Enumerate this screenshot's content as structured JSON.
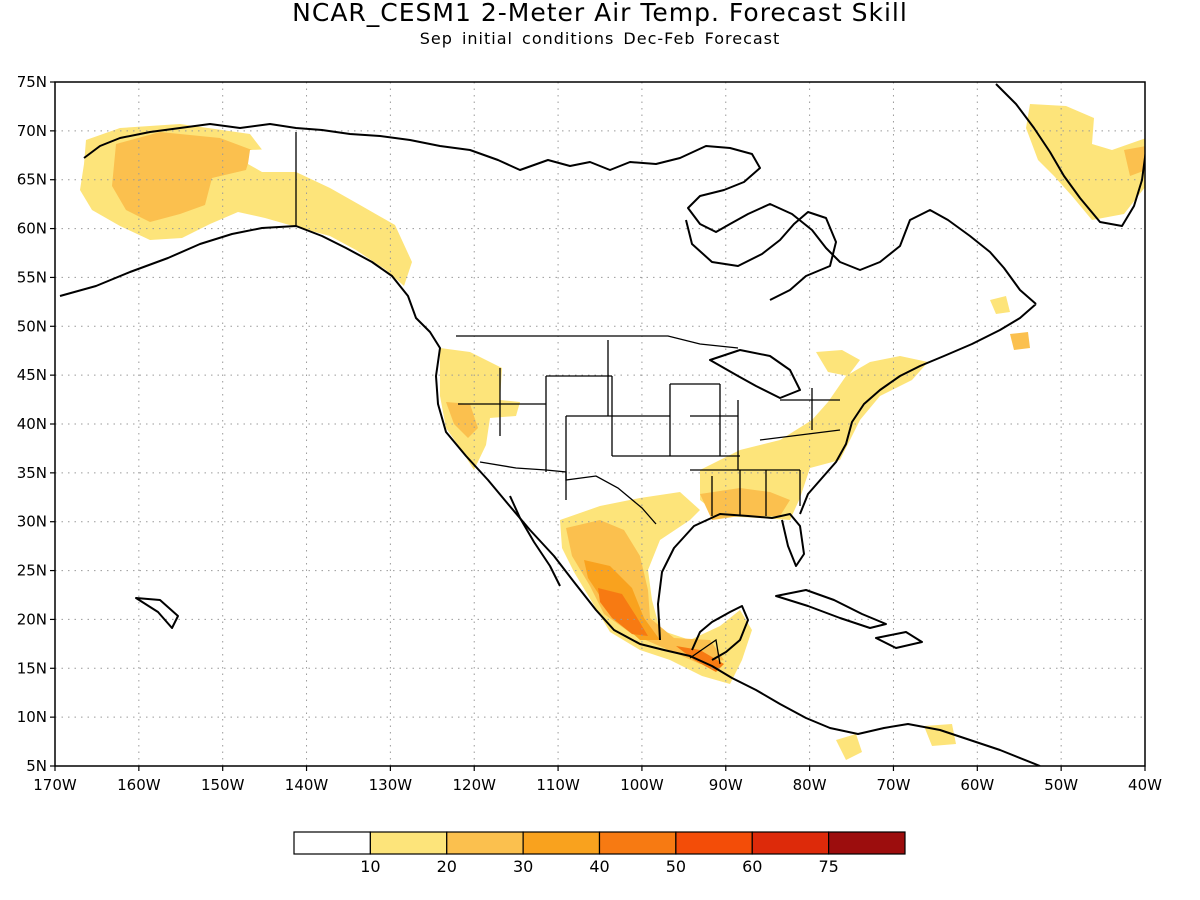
{
  "title": "NCAR_CESM1 2-Meter Air Temp. Forecast Skill",
  "subtitle": "Sep initial conditions  Dec-Feb Forecast",
  "map": {
    "lat_ticks": [
      "75N",
      "70N",
      "65N",
      "60N",
      "55N",
      "50N",
      "45N",
      "40N",
      "35N",
      "30N",
      "25N",
      "20N",
      "15N",
      "10N",
      "5N"
    ],
    "lon_ticks": [
      "170W",
      "160W",
      "150W",
      "140W",
      "130W",
      "120W",
      "110W",
      "100W",
      "90W",
      "80W",
      "70W",
      "60W",
      "50W",
      "40W"
    ],
    "lat_range": [
      5,
      75
    ],
    "lon_range": [
      -170,
      -40
    ],
    "grid": "dotted"
  },
  "colorbar": {
    "colors": [
      "#ffffff",
      "#fde47a",
      "#fbc04e",
      "#f9a21e",
      "#f77a12",
      "#f34d08",
      "#dd2a0a",
      "#9c0d0d"
    ],
    "labels": [
      "10",
      "20",
      "30",
      "40",
      "50",
      "60",
      "75"
    ]
  }
}
